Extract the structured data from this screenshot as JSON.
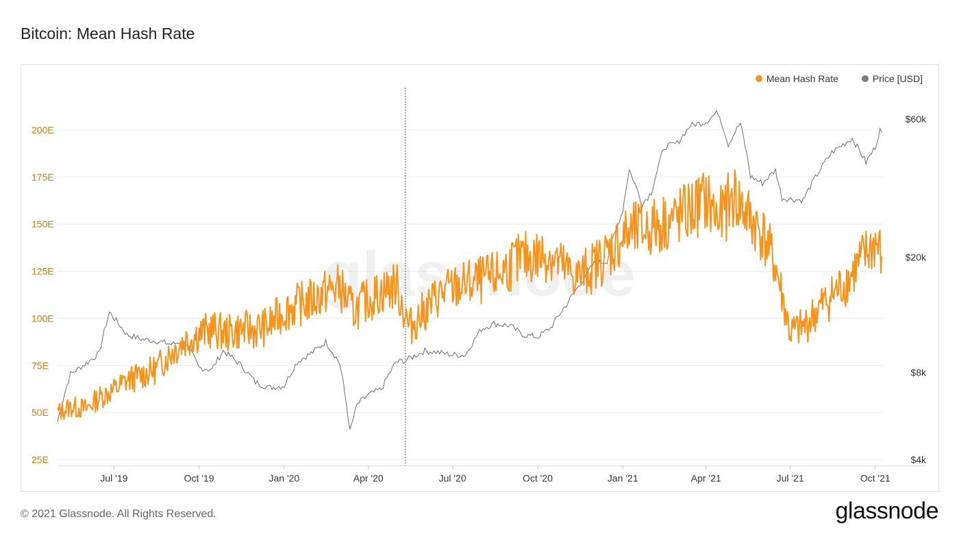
{
  "title": "Bitcoin: Mean Hash Rate",
  "footer": "© 2021 Glassnode. All Rights Reserved.",
  "brand": "glassnode",
  "watermark": "glassnode",
  "colors": {
    "hash_rate": "#f7931a",
    "price": "#6e6e6e",
    "axis_left": "#d07a0a"
  },
  "legend": [
    {
      "label": "Mean Hash Rate",
      "color": "#f7931a"
    },
    {
      "label": "Price [USD]",
      "color": "#7d7d7d"
    }
  ],
  "chart_data": {
    "type": "line",
    "x_range": [
      "2019-05-01",
      "2021-10-10"
    ],
    "x_ticks": [
      {
        "date": "2019-07-01",
        "label": "Jul '19"
      },
      {
        "date": "2019-10-01",
        "label": "Oct '19"
      },
      {
        "date": "2020-01-01",
        "label": "Jan '20"
      },
      {
        "date": "2020-04-01",
        "label": "Apr '20"
      },
      {
        "date": "2020-07-01",
        "label": "Jul '20"
      },
      {
        "date": "2020-10-01",
        "label": "Oct '20"
      },
      {
        "date": "2021-01-01",
        "label": "Jan '21"
      },
      {
        "date": "2021-04-01",
        "label": "Apr '21"
      },
      {
        "date": "2021-07-01",
        "label": "Jul '21"
      },
      {
        "date": "2021-10-01",
        "label": "Oct '21"
      }
    ],
    "y_left": {
      "unit": "E",
      "min": 25,
      "max": 225,
      "ticks": [
        25,
        50,
        75,
        100,
        125,
        150,
        175,
        200
      ],
      "tick_labels": [
        "25E",
        "50E",
        "75E",
        "100E",
        "125E",
        "150E",
        "175E",
        "200E"
      ]
    },
    "y_right": {
      "scale": "log",
      "min": 4000,
      "max": 80000,
      "ticks": [
        4000,
        8000,
        20000,
        60000
      ],
      "tick_labels": [
        "$4k",
        "$8k",
        "$20k",
        "$60k"
      ]
    },
    "marker_line_date": "2020-05-11",
    "grid": true,
    "legend_position": "top-right",
    "series": [
      {
        "name": "Mean Hash Rate",
        "axis": "left",
        "points": [
          [
            "2019-05-01",
            50
          ],
          [
            "2019-05-15",
            53
          ],
          [
            "2019-06-01",
            52
          ],
          [
            "2019-06-15",
            58
          ],
          [
            "2019-07-01",
            62
          ],
          [
            "2019-07-15",
            67
          ],
          [
            "2019-08-01",
            70
          ],
          [
            "2019-08-15",
            73
          ],
          [
            "2019-09-01",
            82
          ],
          [
            "2019-09-15",
            88
          ],
          [
            "2019-10-01",
            92
          ],
          [
            "2019-10-15",
            94
          ],
          [
            "2019-11-01",
            92
          ],
          [
            "2019-11-15",
            94
          ],
          [
            "2019-12-01",
            94
          ],
          [
            "2019-12-15",
            96
          ],
          [
            "2020-01-01",
            104
          ],
          [
            "2020-01-15",
            107
          ],
          [
            "2020-02-01",
            110
          ],
          [
            "2020-02-15",
            114
          ],
          [
            "2020-03-01",
            117
          ],
          [
            "2020-03-15",
            104
          ],
          [
            "2020-04-01",
            110
          ],
          [
            "2020-04-15",
            114
          ],
          [
            "2020-05-01",
            118
          ],
          [
            "2020-05-15",
            95
          ],
          [
            "2020-06-01",
            104
          ],
          [
            "2020-06-15",
            112
          ],
          [
            "2020-07-01",
            116
          ],
          [
            "2020-07-15",
            118
          ],
          [
            "2020-08-01",
            120
          ],
          [
            "2020-08-15",
            122
          ],
          [
            "2020-09-01",
            128
          ],
          [
            "2020-09-15",
            132
          ],
          [
            "2020-10-01",
            133
          ],
          [
            "2020-10-15",
            134
          ],
          [
            "2020-11-01",
            125
          ],
          [
            "2020-11-15",
            122
          ],
          [
            "2020-12-01",
            128
          ],
          [
            "2020-12-15",
            134
          ],
          [
            "2021-01-01",
            143
          ],
          [
            "2021-01-15",
            146
          ],
          [
            "2021-02-01",
            148
          ],
          [
            "2021-02-15",
            151
          ],
          [
            "2021-03-01",
            153
          ],
          [
            "2021-03-15",
            157
          ],
          [
            "2021-04-01",
            163
          ],
          [
            "2021-04-15",
            152
          ],
          [
            "2021-05-01",
            165
          ],
          [
            "2021-05-15",
            155
          ],
          [
            "2021-06-01",
            145
          ],
          [
            "2021-06-15",
            128
          ],
          [
            "2021-07-01",
            92
          ],
          [
            "2021-07-15",
            95
          ],
          [
            "2021-08-01",
            105
          ],
          [
            "2021-08-15",
            112
          ],
          [
            "2021-09-01",
            120
          ],
          [
            "2021-09-15",
            130
          ],
          [
            "2021-10-01",
            140
          ],
          [
            "2021-10-08",
            133
          ]
        ]
      },
      {
        "name": "Price [USD]",
        "axis": "right",
        "points": [
          [
            "2019-05-01",
            5400
          ],
          [
            "2019-05-15",
            7900
          ],
          [
            "2019-06-01",
            8600
          ],
          [
            "2019-06-15",
            9300
          ],
          [
            "2019-06-26",
            12900
          ],
          [
            "2019-07-15",
            10800
          ],
          [
            "2019-08-01",
            10400
          ],
          [
            "2019-08-15",
            10300
          ],
          [
            "2019-09-01",
            10000
          ],
          [
            "2019-09-15",
            10300
          ],
          [
            "2019-10-01",
            8300
          ],
          [
            "2019-10-15",
            8200
          ],
          [
            "2019-10-27",
            9500
          ],
          [
            "2019-11-15",
            8500
          ],
          [
            "2019-12-01",
            7400
          ],
          [
            "2019-12-15",
            7100
          ],
          [
            "2020-01-01",
            7200
          ],
          [
            "2020-01-15",
            8700
          ],
          [
            "2020-02-01",
            9400
          ],
          [
            "2020-02-15",
            10200
          ],
          [
            "2020-03-01",
            8600
          ],
          [
            "2020-03-12",
            5000
          ],
          [
            "2020-03-20",
            6200
          ],
          [
            "2020-04-01",
            6700
          ],
          [
            "2020-04-15",
            7000
          ],
          [
            "2020-05-01",
            8700
          ],
          [
            "2020-05-11",
            8800
          ],
          [
            "2020-06-01",
            9500
          ],
          [
            "2020-06-15",
            9400
          ],
          [
            "2020-07-01",
            9200
          ],
          [
            "2020-07-15",
            9200
          ],
          [
            "2020-08-01",
            11300
          ],
          [
            "2020-08-15",
            11800
          ],
          [
            "2020-09-01",
            11600
          ],
          [
            "2020-09-15",
            10800
          ],
          [
            "2020-10-01",
            10600
          ],
          [
            "2020-10-15",
            11400
          ],
          [
            "2020-11-01",
            13700
          ],
          [
            "2020-11-15",
            16000
          ],
          [
            "2020-12-01",
            19000
          ],
          [
            "2020-12-15",
            19400
          ],
          [
            "2021-01-01",
            29000
          ],
          [
            "2021-01-08",
            40000
          ],
          [
            "2021-01-22",
            30500
          ],
          [
            "2021-02-01",
            33500
          ],
          [
            "2021-02-15",
            48000
          ],
          [
            "2021-03-01",
            49500
          ],
          [
            "2021-03-15",
            57000
          ],
          [
            "2021-04-01",
            58700
          ],
          [
            "2021-04-14",
            63500
          ],
          [
            "2021-04-25",
            49000
          ],
          [
            "2021-05-08",
            58000
          ],
          [
            "2021-05-19",
            38000
          ],
          [
            "2021-06-01",
            36000
          ],
          [
            "2021-06-15",
            40000
          ],
          [
            "2021-06-22",
            32000
          ],
          [
            "2021-07-15",
            31500
          ],
          [
            "2021-08-01",
            39500
          ],
          [
            "2021-08-15",
            46000
          ],
          [
            "2021-09-06",
            51500
          ],
          [
            "2021-09-21",
            42500
          ],
          [
            "2021-10-01",
            48000
          ],
          [
            "2021-10-06",
            55000
          ],
          [
            "2021-10-08",
            54000
          ]
        ]
      }
    ]
  }
}
